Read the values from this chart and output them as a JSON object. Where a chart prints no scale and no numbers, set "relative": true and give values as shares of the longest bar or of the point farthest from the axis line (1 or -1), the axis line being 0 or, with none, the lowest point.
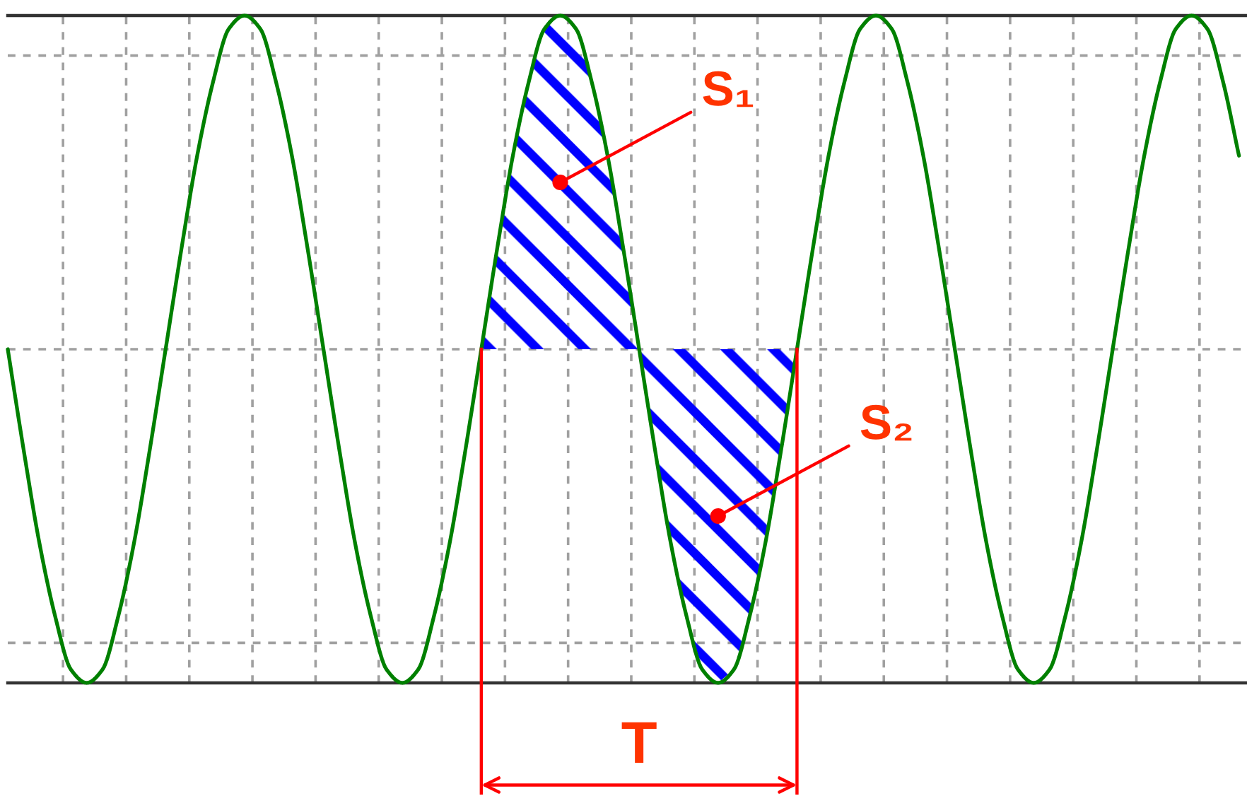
{
  "chart_data": {
    "type": "line",
    "relative": true,
    "grid": true,
    "categories": [
      null,
      null,
      null,
      null,
      null,
      null,
      null,
      null,
      null,
      null,
      null,
      null,
      null,
      null,
      null,
      null,
      null,
      null,
      null,
      null,
      null,
      null,
      null,
      null,
      null,
      null,
      null,
      null,
      null,
      null,
      null,
      null,
      null,
      null,
      null,
      null,
      null,
      null,
      null,
      null,
      null,
      null,
      null,
      null,
      null,
      null,
      null,
      null,
      null,
      null,
      null,
      null,
      null,
      null,
      null,
      null,
      null,
      null,
      null,
      null,
      null,
      null,
      null,
      null,
      null,
      null,
      null,
      null,
      null,
      null,
      null,
      null,
      null,
      null,
      null,
      null,
      null,
      null,
      null
    ],
    "series": [
      {
        "color": "#008000",
        "values": [
          0.5,
          0.35,
          0.21,
          0.1,
          0.02,
          0,
          0.02,
          0.1,
          0.21,
          0.35,
          0.5,
          0.65,
          0.79,
          0.9,
          0.98,
          1,
          0.98,
          0.9,
          0.79,
          0.65,
          0.5,
          0.35,
          0.21,
          0.1,
          0.02,
          0,
          0.02,
          0.1,
          0.21,
          0.35,
          0.5,
          0.65,
          0.79,
          0.9,
          0.98,
          1,
          0.98,
          0.9,
          0.79,
          0.65,
          0.5,
          0.35,
          0.21,
          0.1,
          0.02,
          0,
          0.02,
          0.1,
          0.21,
          0.35,
          0.5,
          0.65,
          0.79,
          0.9,
          0.98,
          1,
          0.98,
          0.9,
          0.79,
          0.65,
          0.5,
          0.35,
          0.21,
          0.1,
          0.02,
          0,
          0.02,
          0.1,
          0.21,
          0.35,
          0.5,
          0.65,
          0.79,
          0.9,
          0.98,
          1,
          0.98,
          0.9,
          0.79
        ]
      },
      {
        "name": "S₁",
        "type": "area",
        "color": "#0000ff",
        "values": [
          null,
          null,
          null,
          null,
          null,
          null,
          null,
          null,
          null,
          null,
          null,
          null,
          null,
          null,
          null,
          null,
          null,
          null,
          null,
          null,
          null,
          null,
          null,
          null,
          null,
          null,
          null,
          null,
          null,
          null,
          0.5,
          0.65,
          0.79,
          0.9,
          0.98,
          1,
          0.98,
          0.9,
          0.79,
          0.65,
          0.5,
          null,
          null,
          null,
          null,
          null,
          null,
          null,
          null,
          null,
          null,
          null,
          null,
          null,
          null,
          null,
          null,
          null,
          null,
          null,
          null,
          null,
          null,
          null,
          null,
          null,
          null,
          null,
          null,
          null,
          null,
          null,
          null,
          null,
          null,
          null,
          null,
          null,
          null
        ]
      },
      {
        "name": "S₂",
        "type": "area",
        "color": "#0000ff",
        "values": [
          null,
          null,
          null,
          null,
          null,
          null,
          null,
          null,
          null,
          null,
          null,
          null,
          null,
          null,
          null,
          null,
          null,
          null,
          null,
          null,
          null,
          null,
          null,
          null,
          null,
          null,
          null,
          null,
          null,
          null,
          null,
          null,
          null,
          null,
          null,
          null,
          null,
          null,
          null,
          null,
          0.5,
          0.35,
          0.21,
          0.1,
          0.02,
          0,
          0.02,
          0.1,
          0.21,
          0.35,
          0.5,
          null,
          null,
          null,
          null,
          null,
          null,
          null,
          null,
          null,
          null,
          null,
          null,
          null,
          null,
          null,
          null,
          null,
          null,
          null,
          null,
          null,
          null,
          null,
          null,
          null,
          null,
          null,
          null
        ]
      }
    ],
    "annotations": [
      "T"
    ]
  }
}
